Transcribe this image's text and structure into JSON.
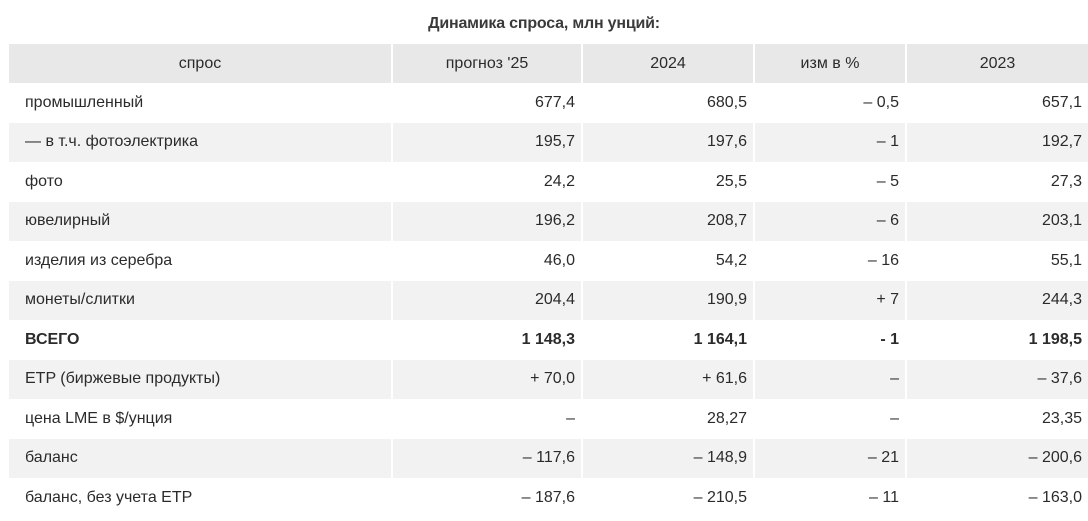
{
  "title": "Динамика спроса, млн унций:",
  "headers": [
    "спрос",
    "прогноз '25",
    "2024",
    "изм в %",
    "2023"
  ],
  "rows": [
    {
      "label": "промышленный",
      "f25": "677,4",
      "y24": "680,5",
      "chg": "– 0,5",
      "y23": "657,1"
    },
    {
      "label": "— в т.ч. фотоэлектрика",
      "f25": "195,7",
      "y24": "197,6",
      "chg": "– 1",
      "y23": "192,7"
    },
    {
      "label": "фото",
      "f25": "24,2",
      "y24": "25,5",
      "chg": "– 5",
      "y23": "27,3"
    },
    {
      "label": "ювелирный",
      "f25": "196,2",
      "y24": "208,7",
      "chg": "– 6",
      "y23": "203,1"
    },
    {
      "label": "изделия из серебра",
      "f25": "46,0",
      "y24": "54,2",
      "chg": "– 16",
      "y23": "55,1"
    },
    {
      "label": "монеты/слитки",
      "f25": "204,4",
      "y24": "190,9",
      "chg": "+ 7",
      "y23": "244,3"
    },
    {
      "label": "ВСЕГО",
      "f25": "1 148,3",
      "y24": "1 164,1",
      "chg": "- 1",
      "y23": "1 198,5"
    },
    {
      "label": "ETP (биржевые продукты)",
      "f25": "+ 70,0",
      "y24": "+ 61,6",
      "chg": "–",
      "y23": "– 37,6"
    },
    {
      "label": "цена LME в $/унция",
      "f25": "–",
      "y24": "28,27",
      "chg": "–",
      "y23": "23,35"
    },
    {
      "label": "баланс",
      "f25": "– 117,6",
      "y24": "– 148,9",
      "chg": "– 21",
      "y23": "– 200,6"
    },
    {
      "label": "баланс, без учета ETP",
      "f25": "– 187,6",
      "y24": "– 210,5",
      "chg": "– 11",
      "y23": "– 163,0"
    }
  ]
}
